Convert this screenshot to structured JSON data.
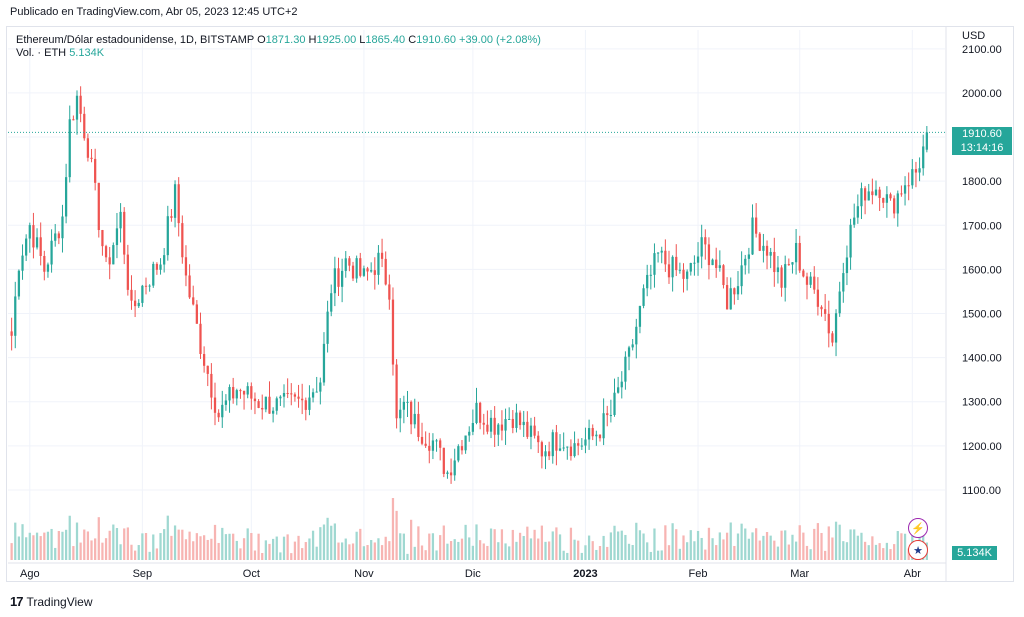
{
  "published": "Publicado en TradingView.com, Abr 05, 2023 12:45 UTC+2",
  "legend": {
    "symbol": "Ethereum/Dólar estadounidense, 1D, BITSTAMP",
    "o_label": "O",
    "o_value": "1871.30",
    "h_label": "H",
    "h_value": "1925.00",
    "l_label": "L",
    "l_value": "1865.40",
    "c_label": "C",
    "c_value": "1910.60",
    "change": "+39.00 (+2.08%)"
  },
  "volume_legend": {
    "label": "Vol. · ETH",
    "value": "5.134K"
  },
  "currency": "USD",
  "last_price": {
    "price": "1910.60",
    "countdown": "13:14:16"
  },
  "volume_tag": "5.134K",
  "brand": "TradingView",
  "colors": {
    "up": "#26a69a",
    "down": "#ef5350",
    "up_vol": "#9fd8d1",
    "down_vol": "#f7b4b2",
    "grid": "#f0f3fa"
  },
  "icons": {
    "event": "lightning-bolt-icon",
    "economic": "us-flag-icon",
    "logo": "tradingview-logo-icon"
  },
  "chart_data": {
    "type": "candlestick",
    "ylim": [
      1050,
      2120
    ],
    "y_ticks": [
      "2100.00",
      "2000.00",
      "1900.00",
      "1800.00",
      "1700.00",
      "1600.00",
      "1500.00",
      "1400.00",
      "1300.00",
      "1200.00",
      "1100.00"
    ],
    "x_ticks": [
      "Ago",
      "Sep",
      "Oct",
      "Nov",
      "Dic",
      "2023",
      "Feb",
      "Mar",
      "Abr"
    ],
    "x_tick_days": [
      3,
      34,
      64,
      95,
      125,
      156,
      187,
      215,
      246
    ],
    "x_range_days": [
      -3,
      255
    ],
    "last_close": 1910.6,
    "anchors": [
      {
        "d": -2,
        "p": 1450
      },
      {
        "d": 0,
        "p": 1620
      },
      {
        "d": 3,
        "p": 1700
      },
      {
        "d": 7,
        "p": 1600
      },
      {
        "d": 12,
        "p": 1720
      },
      {
        "d": 14,
        "p": 1930
      },
      {
        "d": 16,
        "p": 1990
      },
      {
        "d": 19,
        "p": 1880
      },
      {
        "d": 24,
        "p": 1600
      },
      {
        "d": 28,
        "p": 1720
      },
      {
        "d": 31,
        "p": 1500
      },
      {
        "d": 34,
        "p": 1560
      },
      {
        "d": 39,
        "p": 1620
      },
      {
        "d": 43,
        "p": 1770
      },
      {
        "d": 46,
        "p": 1580
      },
      {
        "d": 50,
        "p": 1430
      },
      {
        "d": 55,
        "p": 1270
      },
      {
        "d": 60,
        "p": 1330
      },
      {
        "d": 66,
        "p": 1300
      },
      {
        "d": 72,
        "p": 1290
      },
      {
        "d": 78,
        "p": 1300
      },
      {
        "d": 83,
        "p": 1350
      },
      {
        "d": 86,
        "p": 1560
      },
      {
        "d": 90,
        "p": 1620
      },
      {
        "d": 95,
        "p": 1580
      },
      {
        "d": 99,
        "p": 1620
      },
      {
        "d": 102,
        "p": 1560
      },
      {
        "d": 104,
        "p": 1250
      },
      {
        "d": 106,
        "p": 1290
      },
      {
        "d": 110,
        "p": 1240
      },
      {
        "d": 114,
        "p": 1210
      },
      {
        "d": 118,
        "p": 1140
      },
      {
        "d": 121,
        "p": 1200
      },
      {
        "d": 126,
        "p": 1280
      },
      {
        "d": 131,
        "p": 1250
      },
      {
        "d": 136,
        "p": 1270
      },
      {
        "d": 140,
        "p": 1230
      },
      {
        "d": 144,
        "p": 1190
      },
      {
        "d": 149,
        "p": 1220
      },
      {
        "d": 153,
        "p": 1200
      },
      {
        "d": 158,
        "p": 1220
      },
      {
        "d": 163,
        "p": 1270
      },
      {
        "d": 168,
        "p": 1400
      },
      {
        "d": 172,
        "p": 1540
      },
      {
        "d": 176,
        "p": 1630
      },
      {
        "d": 180,
        "p": 1600
      },
      {
        "d": 184,
        "p": 1580
      },
      {
        "d": 188,
        "p": 1650
      },
      {
        "d": 191,
        "p": 1630
      },
      {
        "d": 195,
        "p": 1530
      },
      {
        "d": 198,
        "p": 1580
      },
      {
        "d": 202,
        "p": 1690
      },
      {
        "d": 206,
        "p": 1650
      },
      {
        "d": 210,
        "p": 1570
      },
      {
        "d": 214,
        "p": 1640
      },
      {
        "d": 217,
        "p": 1570
      },
      {
        "d": 221,
        "p": 1530
      },
      {
        "d": 224,
        "p": 1440
      },
      {
        "d": 227,
        "p": 1620
      },
      {
        "d": 230,
        "p": 1720
      },
      {
        "d": 233,
        "p": 1780
      },
      {
        "d": 237,
        "p": 1790
      },
      {
        "d": 240,
        "p": 1740
      },
      {
        "d": 244,
        "p": 1800
      },
      {
        "d": 247,
        "p": 1820
      },
      {
        "d": 249,
        "p": 1871
      },
      {
        "d": 250,
        "p": 1910
      }
    ]
  }
}
